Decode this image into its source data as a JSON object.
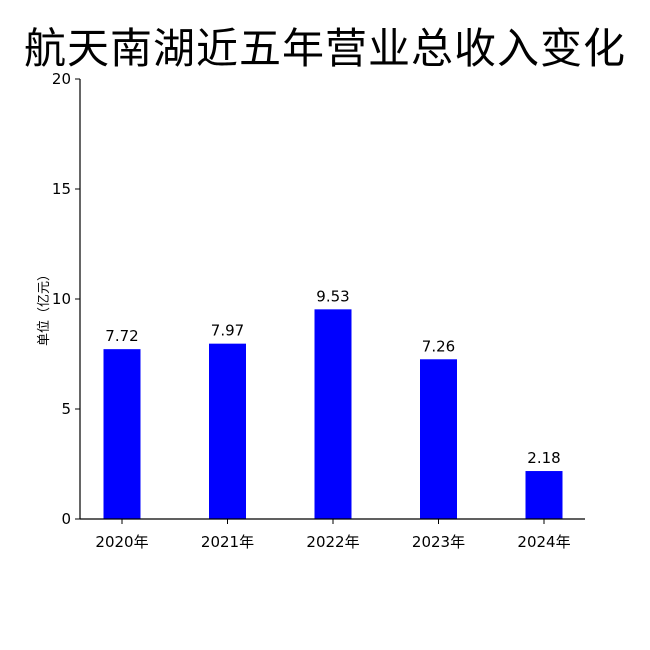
{
  "chart_data": {
    "type": "bar",
    "title": "航天南湖近五年营业总收入变化",
    "xlabel": "",
    "ylabel": "单位（亿元）",
    "categories": [
      "2020年",
      "2021年",
      "2022年",
      "2023年",
      "2024年"
    ],
    "values": [
      7.72,
      7.97,
      9.53,
      7.26,
      2.18
    ],
    "data_labels": [
      "7.72",
      "7.97",
      "9.53",
      "7.26",
      "2.18"
    ],
    "ylim": [
      0,
      20
    ],
    "yticks": [
      0,
      5,
      10,
      15,
      20
    ],
    "ytick_labels": [
      "0",
      "5",
      "10",
      "15",
      "20"
    ],
    "bar_color": "#0000ff",
    "grid": false,
    "legend": "none"
  }
}
